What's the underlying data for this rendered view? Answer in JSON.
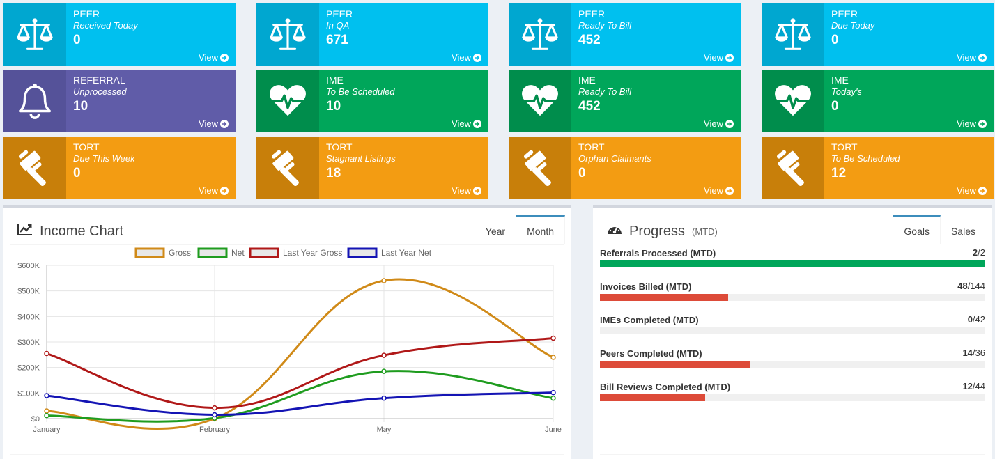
{
  "tiles": [
    {
      "cat": "PEER",
      "sub": "Received Today",
      "num": "0",
      "view": "View",
      "color": "blue",
      "icon": "scale-icon"
    },
    {
      "cat": "PEER",
      "sub": "In QA",
      "num": "671",
      "view": "View",
      "color": "blue",
      "icon": "scale-icon"
    },
    {
      "cat": "PEER",
      "sub": "Ready To Bill",
      "num": "452",
      "view": "View",
      "color": "blue",
      "icon": "scale-icon"
    },
    {
      "cat": "PEER",
      "sub": "Due Today",
      "num": "0",
      "view": "View",
      "color": "blue",
      "icon": "scale-icon"
    },
    {
      "cat": "REFERRAL",
      "sub": "Unprocessed",
      "num": "10",
      "view": "View",
      "color": "purple",
      "icon": "bell-icon"
    },
    {
      "cat": "IME",
      "sub": "To Be Scheduled",
      "num": "10",
      "view": "View",
      "color": "green",
      "icon": "heartbeat-icon"
    },
    {
      "cat": "IME",
      "sub": "Ready To Bill",
      "num": "452",
      "view": "View",
      "color": "green",
      "icon": "heartbeat-icon"
    },
    {
      "cat": "IME",
      "sub": "Today's",
      "num": "0",
      "view": "View",
      "color": "green",
      "icon": "heartbeat-icon"
    },
    {
      "cat": "TORT",
      "sub": "Due This Week",
      "num": "0",
      "view": "View",
      "color": "orange",
      "icon": "gavel-icon"
    },
    {
      "cat": "TORT",
      "sub": "Stagnant Listings",
      "num": "18",
      "view": "View",
      "color": "orange",
      "icon": "gavel-icon"
    },
    {
      "cat": "TORT",
      "sub": "Orphan Claimants",
      "num": "0",
      "view": "View",
      "color": "orange",
      "icon": "gavel-icon"
    },
    {
      "cat": "TORT",
      "sub": "To Be Scheduled",
      "num": "12",
      "view": "View",
      "color": "orange",
      "icon": "gavel-icon"
    }
  ],
  "income": {
    "title": "Income Chart",
    "icon": "line-chart-icon",
    "tabs": [
      "Year",
      "Month"
    ],
    "active_tab": "Month"
  },
  "chart_data": {
    "type": "line",
    "x": [
      "January",
      "February",
      "May",
      "June"
    ],
    "ylim": [
      0,
      600000
    ],
    "yticks": [
      "$0",
      "$100K",
      "$200K",
      "$300K",
      "$400K",
      "$500K",
      "$600K"
    ],
    "grid": true,
    "legend": "top",
    "series": [
      {
        "name": "Gross",
        "color": "#d08a18",
        "values": [
          30000,
          0,
          540000,
          240000
        ]
      },
      {
        "name": "Net",
        "color": "#1f9c1f",
        "values": [
          12000,
          2000,
          185000,
          80000
        ]
      },
      {
        "name": "Last Year Gross",
        "color": "#b01818",
        "values": [
          255000,
          42000,
          248000,
          315000
        ]
      },
      {
        "name": "Last Year Net",
        "color": "#1414b4",
        "values": [
          90000,
          15000,
          80000,
          102000
        ]
      }
    ]
  },
  "progress": {
    "title": "Progress",
    "subtitle": "(MTD)",
    "icon": "dashboard-icon",
    "tabs": [
      "Goals",
      "Sales"
    ],
    "active_tab": "Goals",
    "items": [
      {
        "label": "Referrals Processed (MTD)",
        "done": "2",
        "total": "/2",
        "fraction": 1.0,
        "color": "#00a65a"
      },
      {
        "label": "Invoices Billed (MTD)",
        "done": "48",
        "total": "/144",
        "fraction": 0.333,
        "color": "#dd4b39"
      },
      {
        "label": "IMEs Completed (MTD)",
        "done": "0",
        "total": "/42",
        "fraction": 0,
        "color": "#dd4b39"
      },
      {
        "label": "Peers Completed (MTD)",
        "done": "14",
        "total": "/36",
        "fraction": 0.389,
        "color": "#dd4b39"
      },
      {
        "label": "Bill Reviews Completed (MTD)",
        "done": "12",
        "total": "/44",
        "fraction": 0.273,
        "color": "#dd4b39"
      }
    ]
  }
}
